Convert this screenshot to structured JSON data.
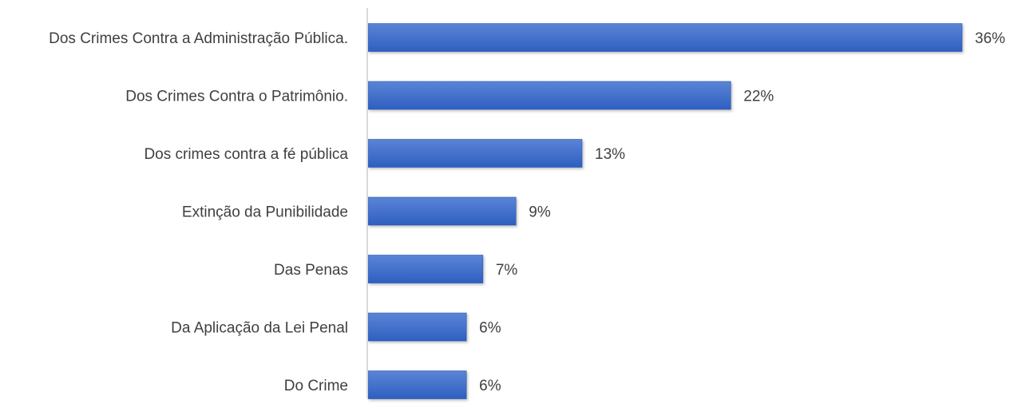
{
  "chart_data": {
    "type": "bar",
    "orientation": "horizontal",
    "categories": [
      "Dos Crimes Contra a Administração Pública.",
      "Dos Crimes Contra o Patrimônio.",
      "Dos crimes contra a fé pública",
      "Extinção da Punibilidade",
      "Das Penas",
      "Da Aplicação da Lei Penal",
      "Do Crime"
    ],
    "values": [
      36,
      22,
      13,
      9,
      7,
      6,
      6
    ],
    "value_labels": [
      "36%",
      "22%",
      "13%",
      "9%",
      "7%",
      "6%",
      "6%"
    ],
    "unit": "%",
    "title": "",
    "xlabel": "",
    "ylabel": "",
    "xlim": [
      0,
      36
    ],
    "grid": false,
    "legend": "none",
    "colors": {
      "bar_top": "#5b84d6",
      "bar_bottom": "#2e5fc0",
      "bar_edge": "#2a56b0",
      "axis": "#d9d9d9",
      "text": "#404040"
    }
  }
}
